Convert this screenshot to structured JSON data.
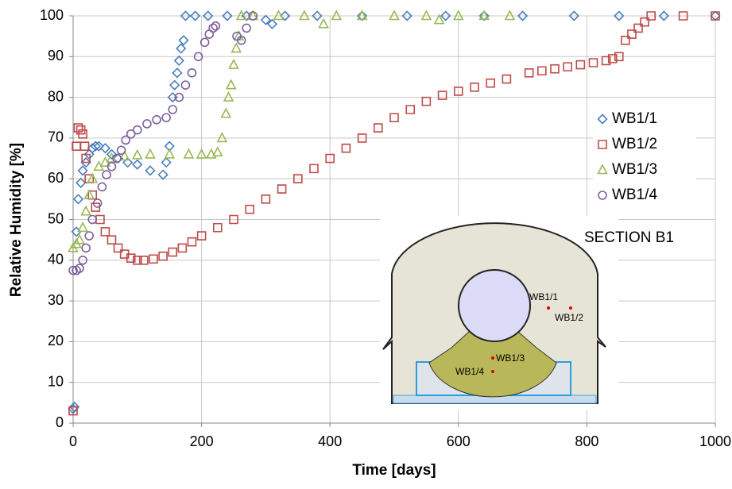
{
  "chart_data": {
    "type": "scatter",
    "xlabel": "Time [days]",
    "ylabel": "Relative Humidity [%]",
    "xlim": [
      0,
      1000
    ],
    "xticks": [
      0,
      200,
      400,
      600,
      800,
      1000
    ],
    "ylim": [
      0,
      100
    ],
    "yticks": [
      0,
      10,
      20,
      30,
      40,
      50,
      60,
      70,
      80,
      90,
      100
    ],
    "grid": true,
    "legend": "right",
    "annotations": [
      "SECTION B1",
      "WB1/1",
      "WB1/2",
      "WB1/3",
      "WB1/4"
    ],
    "series": [
      {
        "name": "WB1/1",
        "color": "#4a7ebb",
        "marker": "diamond",
        "x": [
          0,
          2,
          5,
          8,
          12,
          15,
          20,
          25,
          30,
          35,
          40,
          50,
          60,
          70,
          85,
          100,
          120,
          140,
          145,
          150,
          155,
          158,
          162,
          165,
          168,
          172,
          175,
          190,
          210,
          240,
          270,
          300,
          310,
          330,
          380,
          450,
          520,
          580,
          640,
          700,
          780,
          850,
          920,
          1000
        ],
        "values": [
          3.5,
          4,
          47,
          55,
          59,
          62,
          64,
          66,
          67.5,
          68,
          68,
          67.5,
          66,
          65,
          64,
          63.5,
          62,
          61,
          64,
          68,
          80,
          83,
          86,
          89,
          92,
          94,
          100,
          100,
          100,
          100,
          100,
          99,
          98,
          100,
          100,
          100,
          100,
          100,
          100,
          100,
          100,
          100,
          100,
          100
        ]
      },
      {
        "name": "WB1/2",
        "color": "#be4b48",
        "marker": "square",
        "x": [
          0,
          5,
          8,
          12,
          15,
          18,
          20,
          25,
          30,
          35,
          42,
          50,
          60,
          70,
          80,
          90,
          100,
          110,
          125,
          140,
          155,
          170,
          185,
          200,
          225,
          250,
          275,
          300,
          325,
          350,
          375,
          400,
          425,
          450,
          475,
          500,
          525,
          550,
          575,
          600,
          625,
          650,
          675,
          710,
          730,
          750,
          770,
          790,
          810,
          830,
          840,
          850,
          860,
          870,
          880,
          890,
          900,
          950,
          1000
        ],
        "values": [
          3,
          68,
          72.5,
          72,
          71,
          68,
          65,
          60,
          56,
          53,
          50,
          47,
          45,
          43,
          41.5,
          40.5,
          40,
          40,
          40.3,
          41,
          42,
          43,
          44.5,
          46,
          48,
          50,
          52.5,
          55,
          57.5,
          60,
          62.5,
          65,
          67.5,
          70,
          72.5,
          75,
          77,
          79,
          80.5,
          81.5,
          82.5,
          83.5,
          84.5,
          86,
          86.5,
          87,
          87.5,
          88,
          88.5,
          89,
          89.5,
          90,
          94,
          95.5,
          97,
          98.5,
          100,
          100,
          100
        ]
      },
      {
        "name": "WB1/3",
        "color": "#98b954",
        "marker": "triangle",
        "x": [
          0,
          5,
          10,
          15,
          20,
          25,
          30,
          40,
          50,
          60,
          80,
          100,
          120,
          150,
          180,
          200,
          215,
          225,
          232,
          238,
          242,
          246,
          250,
          254,
          258,
          262,
          280,
          320,
          360,
          390,
          410,
          450,
          500,
          550,
          570,
          600,
          640,
          680
        ],
        "values": [
          43,
          44,
          45,
          48,
          52,
          56,
          60,
          63,
          64,
          65,
          65.5,
          65.8,
          66,
          66,
          66,
          66,
          66,
          66.5,
          70,
          76,
          80,
          83,
          88,
          92,
          95,
          100,
          100,
          100,
          100,
          98,
          100,
          100,
          100,
          100,
          99,
          100,
          100,
          100
        ]
      },
      {
        "name": "WB1/4",
        "color": "#7d60a0",
        "marker": "circle",
        "x": [
          0,
          5,
          10,
          15,
          20,
          25,
          30,
          38,
          45,
          52,
          60,
          68,
          75,
          82,
          90,
          100,
          115,
          130,
          145,
          155,
          165,
          175,
          185,
          195,
          205,
          212,
          218,
          222,
          255,
          262,
          270,
          280
        ],
        "values": [
          37.5,
          37.5,
          38,
          40,
          43,
          46,
          50,
          54,
          58,
          61,
          63,
          65,
          67,
          69.5,
          71,
          72,
          73.5,
          74.5,
          75,
          77,
          80,
          83,
          86,
          90,
          93.5,
          95.5,
          97,
          97.5,
          95,
          94,
          97,
          100
        ]
      }
    ]
  }
}
